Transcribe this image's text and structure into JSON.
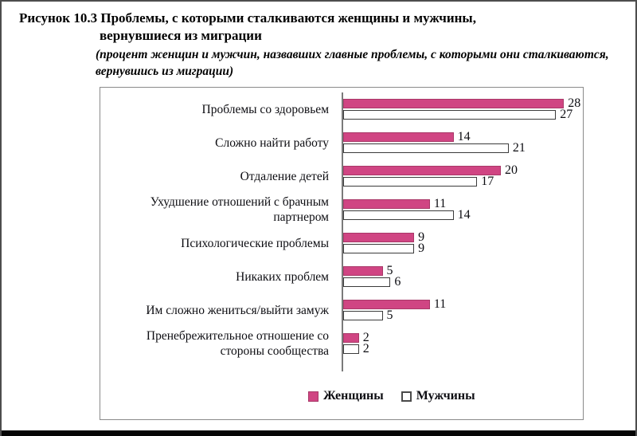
{
  "figure": {
    "title_line1": "Рисунок 10.3 Проблемы, с которыми сталкиваются женщины и мужчины,",
    "title_line2": "вернувшиеся из миграции",
    "subtitle_line1": "(процент женщин и мужчин, назвавших главные проблемы, с которыми они сталкиваются,",
    "subtitle_line2": "вернувшись из миграции)"
  },
  "chart_data": {
    "type": "bar",
    "orientation": "horizontal",
    "title": "Рисунок 10.3 Проблемы, с которыми сталкиваются женщины и мужчины, вернувшиеся из миграции",
    "subtitle": "(процент женщин и мужчин, назвавших главные проблемы, с которыми они сталкиваются, вернувшись из миграции)",
    "categories": [
      "Проблемы со здоровьем",
      "Сложно найти работу",
      "Отдаление детей",
      "Ухудшение отношений с брачным\nпартнером",
      "Психологические проблемы",
      "Никаких проблем",
      "Им сложно жениться/выйти замуж",
      "Пренебрежительное отношение со\nстороны сообщества"
    ],
    "series": [
      {
        "name": "Женщины",
        "color": "#D04583",
        "values": [
          28,
          14,
          20,
          11,
          9,
          5,
          11,
          2
        ]
      },
      {
        "name": "Мужчины",
        "color": "#FFFFFF",
        "values": [
          27,
          21,
          17,
          14,
          9,
          6,
          5,
          2
        ]
      }
    ],
    "value_labels": true,
    "xlim": [
      0,
      30
    ],
    "grid": false,
    "legend_position": "bottom"
  },
  "colors": {
    "women_bar": "#D04583",
    "men_bar": "#FFFFFF",
    "bar_outline": "#3B3B3B",
    "axis": "#7A7A7A",
    "chart_border": "#8A8A8A",
    "page_border": "#4D4D4D",
    "bottom_rule": "#060606",
    "text": "#0D0D12"
  }
}
